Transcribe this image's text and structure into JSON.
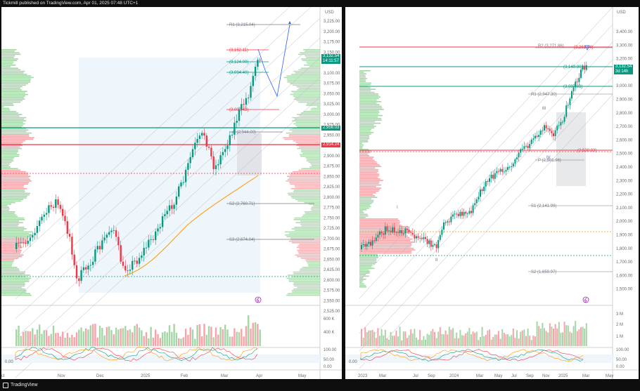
{
  "header": {
    "publisher_line": "Tickmill published on TradingView.com, Apr 01, 2025 07:48 UTC+1"
  },
  "footer": {
    "brand": "TradingView"
  },
  "left_chart": {
    "currency": "USD",
    "price_ticks": [
      "3,225.00",
      "3,200.00",
      "3,175.00",
      "3,150.00",
      "3,125.00",
      "3,100.00",
      "3,075.00",
      "3,050.00",
      "3,025.00",
      "3,000.00",
      "2,975.00",
      "2,950.00",
      "2,925.00",
      "2,900.00",
      "2,875.00",
      "2,850.00",
      "2,825.00",
      "2,800.00",
      "2,775.00",
      "2,750.00",
      "2,725.00",
      "2,700.00",
      "2,675.00",
      "2,650.00",
      "2,625.00",
      "2,600.00",
      "2,575.00",
      "2,550.00",
      "2,525.00"
    ],
    "time_labels": [
      "ct",
      "Nov",
      "Dec",
      "2025",
      "Feb",
      "Mar",
      "Apr",
      "May"
    ],
    "volume_ticks": [
      "600 K",
      "400 K"
    ],
    "osc_ticks": [
      "100.00",
      "50.00",
      "0.00"
    ],
    "osc_left_value": "0.00",
    "current_price": "3,132.54",
    "countdown": "14:11:57",
    "tag_green": "2,956.03",
    "tag_red": "2,914.24",
    "levels": [
      {
        "label": "R1 (3,215.04)",
        "color": "#787b86"
      },
      {
        "label": "(3,152.11)",
        "color": "#f23645"
      },
      {
        "label": "(3,124.09)",
        "color": "#089981"
      },
      {
        "label": "(3,094.40)",
        "color": "#089981"
      },
      {
        "label": "(3,000.43)",
        "color": "#f23645"
      },
      {
        "label": "P (2,944.00)",
        "color": "#787b86"
      },
      {
        "label": "S2 (2,760.71)",
        "color": "#787b86"
      },
      {
        "label": "S3 (2,674.04)",
        "color": "#787b86"
      }
    ]
  },
  "right_chart": {
    "currency": "USD",
    "price_ticks": [
      "3,400.00",
      "3,300.00",
      "3,200.00",
      "3,100.00",
      "3,000.00",
      "2,900.00",
      "2,800.00",
      "2,700.00",
      "2,600.00",
      "2,500.00",
      "2,400.00",
      "2,300.00",
      "2,200.00",
      "2,100.00",
      "2,000.00",
      "1,900.00",
      "1,800.00",
      "1,700.00",
      "1,600.00",
      "1,500.00"
    ],
    "time_labels": [
      "2023",
      "Mar",
      "Jul",
      "Sep",
      "2024",
      "Mar",
      "May",
      "Jul",
      "Sep",
      "Nov",
      "2025",
      "Mar",
      "May"
    ],
    "volume_ticks": [
      "3 M",
      "2 M",
      "1 M"
    ],
    "osc_ticks": [
      "100.00",
      "50.00",
      "0.00"
    ],
    "osc_left_value": "0.00",
    "current_price": "3,132.54",
    "countdown": "3d 14h",
    "wave_labels": [
      "I",
      "II",
      "III",
      "IV"
    ],
    "levels": [
      {
        "label": "R2 (3,271.86)",
        "color": "#787b86"
      },
      {
        "label": "(3,261.04)",
        "color": "#f23645"
      },
      {
        "label": "(3,149.80)",
        "color": "#089981"
      },
      {
        "label": "(3,007.63)",
        "color": "#089981"
      },
      {
        "label": "R1 (2,947.30)",
        "color": "#787b86"
      },
      {
        "label": "(2,538.83)",
        "color": "#f23645"
      },
      {
        "label": "P (2,501.96)",
        "color": "#787b86"
      },
      {
        "label": "S1 (2,141.99)",
        "color": "#787b86"
      },
      {
        "label": "S2 (1,659.97)",
        "color": "#787b86"
      }
    ]
  }
}
